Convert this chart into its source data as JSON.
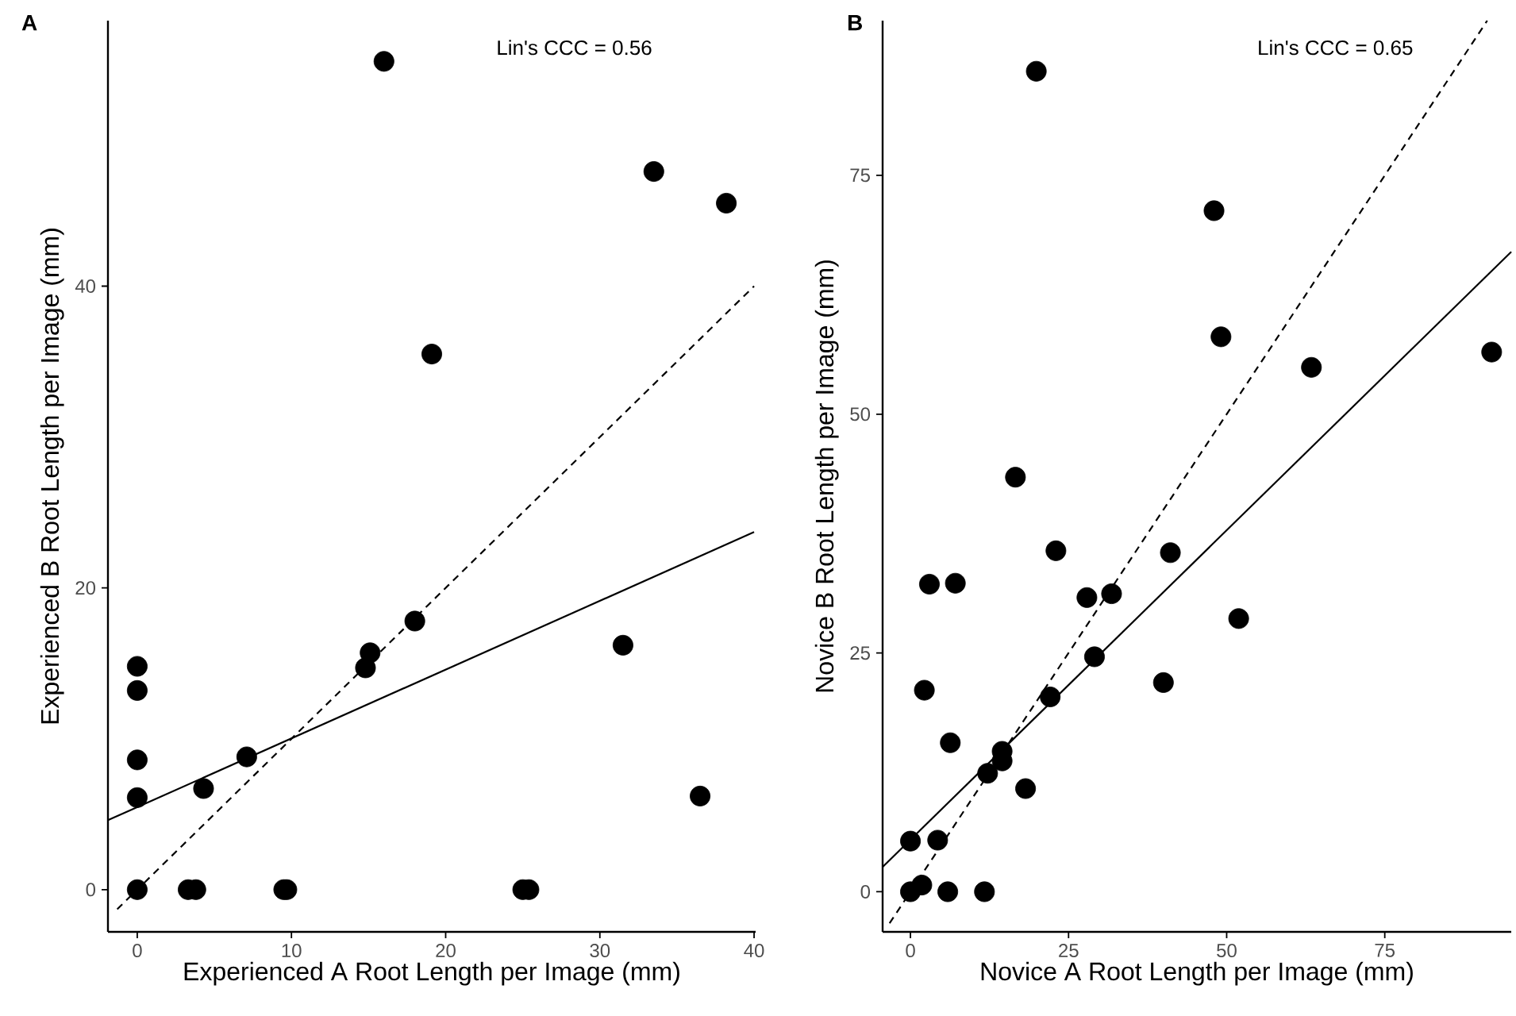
{
  "chart_data": [
    {
      "type": "scatter",
      "title": "A",
      "xlabel": "Experienced A Root Length per Image (mm)",
      "ylabel": "Experienced B Root Length per Image (mm)",
      "annotations": [
        "Lin's CCC = 0.56"
      ],
      "xlim": [
        -1.9,
        40.1
      ],
      "ylim": [
        -2.8,
        57.6
      ],
      "xticks": [
        0,
        10,
        20,
        30,
        40
      ],
      "yticks": [
        0,
        20,
        40
      ],
      "grid": false,
      "series": [
        {
          "type": "scatter",
          "color": "#000000",
          "marker": "circle",
          "x": [
            0,
            0,
            0,
            0,
            0,
            3.3,
            3.8,
            9.5,
            9.7,
            25.0,
            25.4,
            4.3,
            7.1,
            14.8,
            15.1,
            18.0,
            31.5,
            16.0,
            33.5,
            19.1,
            38.2,
            36.5
          ],
          "values": [
            14.8,
            13.2,
            8.6,
            6.1,
            0,
            0,
            0,
            0,
            0,
            0,
            0,
            6.7,
            8.8,
            14.7,
            15.7,
            17.8,
            16.2,
            54.9,
            47.6,
            35.5,
            45.5,
            6.2
          ]
        },
        {
          "type": "line",
          "color": "#000000",
          "line_style": "solid",
          "x": [
            -1.9,
            40
          ],
          "values": [
            4.6,
            23.7
          ]
        },
        {
          "type": "line",
          "color": "#000000",
          "line_style": "dashed",
          "x": [
            -1.3,
            40
          ],
          "values": [
            -1.3,
            40
          ]
        }
      ]
    },
    {
      "type": "scatter",
      "title": "B",
      "xlabel": "Novice A Root Length per Image (mm)",
      "ylabel": "Novice B Root Length per Image (mm)",
      "annotations": [
        "Lin's CCC = 0.65"
      ],
      "xlim": [
        -4.4,
        95
      ],
      "ylim": [
        -4.2,
        91.2
      ],
      "xticks": [
        0,
        25,
        50,
        75
      ],
      "yticks": [
        0,
        25,
        50,
        75
      ],
      "grid": false,
      "series": [
        {
          "type": "scatter",
          "color": "#000000",
          "marker": "circle",
          "x": [
            0,
            1.8,
            5.9,
            11.7,
            0,
            4.3,
            6.3,
            2.2,
            3.0,
            7.1,
            12.2,
            14.5,
            14.5,
            18.2,
            22.1,
            23.0,
            27.9,
            31.8,
            29.1,
            40.0,
            41.1,
            51.9,
            16.6,
            19.9,
            48.0,
            49.1,
            63.4,
            91.9
          ],
          "values": [
            0,
            0.7,
            0,
            0,
            5.3,
            5.4,
            15.6,
            21.1,
            32.2,
            32.3,
            12.4,
            13.7,
            14.7,
            10.8,
            20.4,
            35.7,
            30.8,
            31.2,
            24.6,
            21.9,
            35.5,
            28.6,
            43.4,
            85.9,
            71.3,
            58.1,
            54.9,
            56.5
          ]
        },
        {
          "type": "line",
          "color": "#000000",
          "line_style": "solid",
          "x": [
            -4.4,
            95
          ],
          "values": [
            2.6,
            67.0
          ]
        },
        {
          "type": "line",
          "color": "#000000",
          "line_style": "dashed",
          "x": [
            -3.3,
            91.2
          ],
          "values": [
            -3.3,
            91.2
          ]
        }
      ]
    }
  ]
}
